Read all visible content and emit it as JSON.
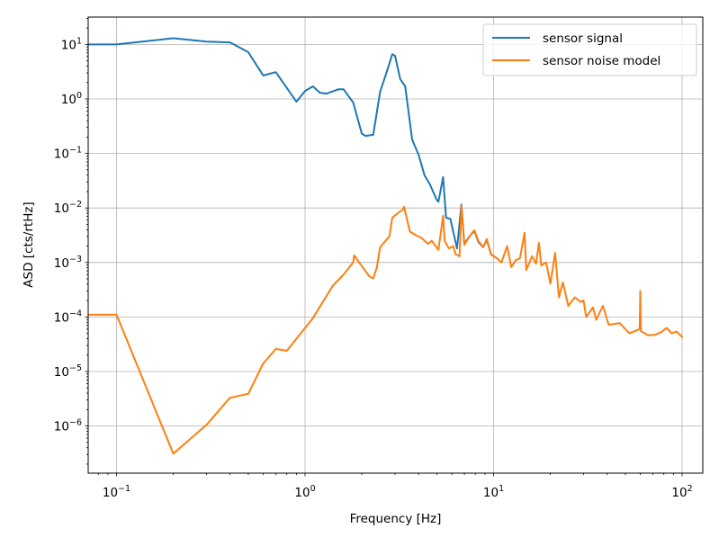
{
  "chart_data": {
    "type": "line",
    "title": "",
    "xlabel": "Frequency [Hz]",
    "ylabel": "ASD [cts/rtHz]",
    "xscale": "log",
    "yscale": "log",
    "xlim": [
      0.071,
      130
    ],
    "ylim": [
      1.5e-07,
      28
    ],
    "grid": true,
    "legend_position": "upper right",
    "x_tick_labels": [
      {
        "base": "10",
        "exp": "−1",
        "value": 0.1
      },
      {
        "base": "10",
        "exp": "0",
        "value": 1
      },
      {
        "base": "10",
        "exp": "1",
        "value": 10
      },
      {
        "base": "10",
        "exp": "2",
        "value": 100
      }
    ],
    "y_tick_labels": [
      {
        "base": "10",
        "exp": "1",
        "value": 10
      },
      {
        "base": "10",
        "exp": "0",
        "value": 1
      },
      {
        "base": "10",
        "exp": "−1",
        "value": 0.1
      },
      {
        "base": "10",
        "exp": "−2",
        "value": 0.01
      },
      {
        "base": "10",
        "exp": "−3",
        "value": 0.001
      },
      {
        "base": "10",
        "exp": "−4",
        "value": 0.0001
      },
      {
        "base": "10",
        "exp": "−5",
        "value": 1e-05
      },
      {
        "base": "10",
        "exp": "−6",
        "value": 1e-06
      }
    ],
    "series": [
      {
        "name": "sensor signal",
        "color": "#1f77b4",
        "x": [
          0.071,
          0.1,
          0.2,
          0.3,
          0.4,
          0.5,
          0.6,
          0.7,
          0.9,
          1.0,
          1.1,
          1.2,
          1.3,
          1.5,
          1.6,
          1.8,
          2.0,
          2.1,
          2.3,
          2.5,
          2.7,
          2.9,
          3.0,
          3.2,
          3.4,
          3.7,
          4.0,
          4.3,
          4.6,
          5.0,
          5.1,
          5.4,
          5.6,
          5.9,
          6.4,
          6.75,
          7.0,
          7.5,
          7.9,
          8.3,
          8.8,
          9.2,
          9.7,
          10.4
        ],
        "y": [
          10,
          10,
          13,
          11.3,
          10.9,
          7.2,
          2.7,
          3.1,
          0.89,
          1.4,
          1.7,
          1.3,
          1.25,
          1.5,
          1.5,
          0.86,
          0.23,
          0.21,
          0.22,
          1.35,
          3.0,
          6.6,
          6.2,
          2.3,
          1.7,
          0.18,
          0.095,
          0.04,
          0.027,
          0.014,
          0.013,
          0.037,
          0.0066,
          0.0063,
          0.0018,
          0.0115,
          0.0022,
          0.0031,
          0.0038,
          0.0024,
          0.0019,
          0.0026,
          0.0014,
          0.0012
        ]
      },
      {
        "name": "sensor noise model",
        "color": "#ff7f0e",
        "x": [
          0.071,
          0.1,
          0.2,
          0.3,
          0.4,
          0.5,
          0.6,
          0.7,
          0.8,
          1.0,
          1.1,
          1.4,
          1.6,
          1.8,
          1.82,
          2.0,
          2.2,
          2.3,
          2.4,
          2.5,
          2.7,
          2.8,
          2.9,
          3.1,
          3.3,
          3.35,
          3.6,
          3.9,
          4.1,
          4.5,
          4.7,
          5.1,
          5.2,
          5.4,
          5.5,
          5.8,
          6.1,
          6.3,
          6.6,
          6.75,
          7.0,
          7.5,
          7.9,
          8.3,
          8.8,
          9.2,
          9.7,
          10.4,
          11.0,
          11.8,
          12.4,
          13.1,
          13.8,
          14.6,
          14.9,
          16.0,
          16.8,
          17.4,
          17.9,
          19.0,
          20.0,
          21.2,
          22.2,
          23.3,
          24.9,
          27.0,
          28.8,
          30.0,
          31.0,
          33.7,
          35.0,
          38.0,
          40.8,
          46.7,
          52.6,
          59.5,
          60.0,
          60.5,
          66.0,
          71.5,
          77.0,
          83.0,
          88.0,
          93.5,
          100
        ],
        "y": [
          0.00011,
          0.00011,
          3.1e-07,
          1.05e-06,
          3.3e-06,
          3.9e-06,
          1.4e-05,
          2.6e-05,
          2.4e-05,
          6.3e-05,
          9.5e-05,
          0.00037,
          0.0006,
          0.001,
          0.00135,
          0.00086,
          0.00055,
          0.00051,
          0.0008,
          0.0019,
          0.0026,
          0.003,
          0.0066,
          0.008,
          0.0093,
          0.0105,
          0.0037,
          0.0031,
          0.0029,
          0.0022,
          0.0025,
          0.0017,
          0.0028,
          0.0072,
          0.0025,
          0.0018,
          0.002,
          0.0014,
          0.0013,
          0.011,
          0.0021,
          0.0031,
          0.0039,
          0.0025,
          0.0019,
          0.0027,
          0.0014,
          0.0012,
          0.001,
          0.002,
          0.00082,
          0.0011,
          0.0012,
          0.0035,
          0.00073,
          0.0013,
          0.00095,
          0.0023,
          0.00088,
          0.001,
          0.00041,
          0.0015,
          0.00023,
          0.00043,
          0.00016,
          0.00023,
          0.00019,
          0.0002,
          0.0001,
          0.00015,
          8.9e-05,
          0.00016,
          7.2e-05,
          7.7e-05,
          5e-05,
          6e-05,
          0.0003,
          5.5e-05,
          4.6e-05,
          4.7e-05,
          5.2e-05,
          6.3e-05,
          5e-05,
          5.4e-05,
          4.3e-05
        ]
      }
    ]
  },
  "legend": {
    "items": [
      {
        "label": "sensor signal",
        "color": "#1f77b4"
      },
      {
        "label": "sensor noise model",
        "color": "#ff7f0e"
      }
    ]
  },
  "axes": {
    "xlabel": "Frequency [Hz]",
    "ylabel": "ASD [cts/rtHz]"
  }
}
